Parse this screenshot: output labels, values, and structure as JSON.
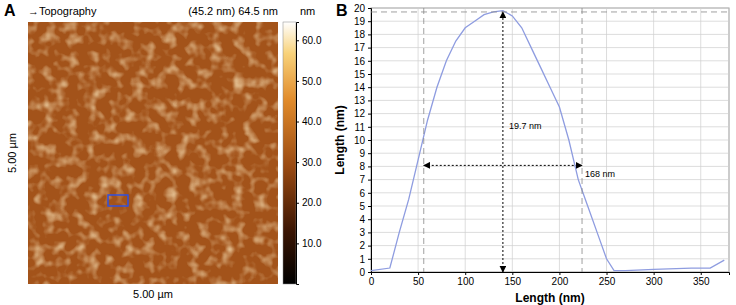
{
  "chart_data": [
    {
      "type": "image",
      "panel_label": "A",
      "title": "→Topography",
      "subtitle": "(45.2 nm) 64.5 nm",
      "x_label": "5.00 µm",
      "y_label": "5.00 µm",
      "colorbar": {
        "label": "nm",
        "range": [
          0,
          64.5
        ],
        "ticks": [
          {
            "value": 10,
            "label": "10.0"
          },
          {
            "value": 20,
            "label": "20.0"
          },
          {
            "value": 30,
            "label": "30.0"
          },
          {
            "value": 40,
            "label": "40.0"
          },
          {
            "value": 50,
            "label": "50.0"
          },
          {
            "value": 60,
            "label": "60.0"
          }
        ]
      }
    },
    {
      "type": "line",
      "panel_label": "B",
      "x_label": "Length (nm)",
      "y_label": "Length (nm)",
      "x": [
        0,
        20,
        30,
        40,
        50,
        60,
        70,
        80,
        90,
        100,
        110,
        120,
        130,
        140,
        150,
        160,
        170,
        180,
        190,
        200,
        210,
        220,
        230,
        240,
        250,
        258,
        270,
        300,
        340,
        360,
        375
      ],
      "values": [
        0.1,
        0.3,
        3,
        5.5,
        8.5,
        11.5,
        14,
        16,
        17.5,
        18.5,
        19,
        19.5,
        19.7,
        19.8,
        19.4,
        18.5,
        17,
        15.5,
        14,
        12.5,
        10,
        7,
        5,
        3,
        1,
        0.1,
        0.1,
        0.2,
        0.3,
        0.3,
        0.9
      ],
      "color": "#8e9ce0",
      "xlim": [
        0,
        380
      ],
      "ylim": [
        0,
        20
      ],
      "xticks": [
        0,
        50,
        100,
        150,
        200,
        250,
        300,
        350
      ],
      "yticks": [
        0,
        1,
        2,
        3,
        4,
        5,
        6,
        7,
        8,
        9,
        10,
        11,
        12,
        13,
        14,
        15,
        16,
        17,
        18,
        19,
        20
      ],
      "grid": true,
      "annotations": [
        {
          "label": "19.7 nm",
          "value": 19.7
        },
        {
          "label": "168 nm",
          "value": 168
        }
      ]
    }
  ]
}
